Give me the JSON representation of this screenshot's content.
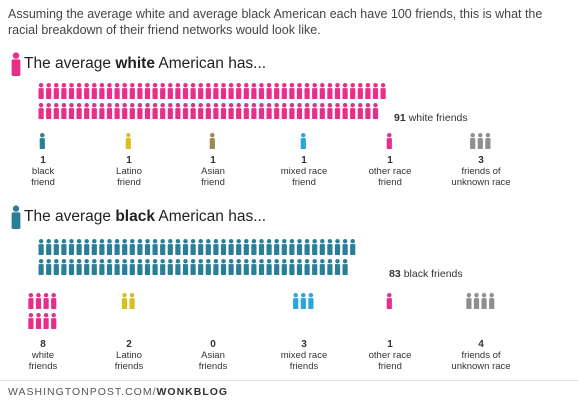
{
  "intro": {
    "line1": "Assuming the average white and average black American each have 100 friends, this is what the",
    "line2": "racial breakdown of their friend networks would look like."
  },
  "colors": {
    "white": "#e62e8b",
    "black": "#2a7f96",
    "latino": "#d9bf1c",
    "asian": "#9a8a52",
    "mixed": "#2aa6d9",
    "other": "#e62e8b",
    "unknown": "#8f8f92"
  },
  "sections": [
    {
      "id": "white",
      "heading_pre": "The average ",
      "heading_bold": "white",
      "heading_post": " American has...",
      "heading_icon_color": "#e62e8b",
      "total": {
        "count": "91",
        "label": "white friends",
        "color": "#e62e8b"
      },
      "categories": [
        {
          "key": "black",
          "count": "1",
          "label_lines": [
            "black",
            "friend"
          ],
          "color": "#2a7f96"
        },
        {
          "key": "latino",
          "count": "1",
          "label_lines": [
            "Latino",
            "friend"
          ],
          "color": "#d9bf1c"
        },
        {
          "key": "asian",
          "count": "1",
          "label_lines": [
            "Asian",
            "friend"
          ],
          "color": "#9a8a52"
        },
        {
          "key": "mixed",
          "count": "1",
          "label_lines": [
            "mixed race",
            "friend"
          ],
          "color": "#2aa6d9"
        },
        {
          "key": "other",
          "count": "1",
          "label_lines": [
            "other race",
            "friend"
          ],
          "color": "#e62e8b"
        },
        {
          "key": "unknown",
          "count": "3",
          "label_lines": [
            "friends of",
            "unknown race"
          ],
          "color": "#8f8f92"
        }
      ]
    },
    {
      "id": "black",
      "heading_pre": "The average ",
      "heading_bold": "black",
      "heading_post": " American has...",
      "heading_icon_color": "#2a7f96",
      "total": {
        "count": "83",
        "label": "black friends",
        "color": "#2a7f96"
      },
      "categories": [
        {
          "key": "white",
          "count": "8",
          "label_lines": [
            "white",
            "friends"
          ],
          "color": "#e62e8b"
        },
        {
          "key": "latino",
          "count": "2",
          "label_lines": [
            "Latino",
            "friends"
          ],
          "color": "#d9bf1c"
        },
        {
          "key": "asian",
          "count": "0",
          "label_lines": [
            "Asian",
            "friends"
          ],
          "color": "#9a8a52"
        },
        {
          "key": "mixed",
          "count": "3",
          "label_lines": [
            "mixed race",
            "friends"
          ],
          "color": "#2aa6d9"
        },
        {
          "key": "other",
          "count": "1",
          "label_lines": [
            "other race",
            "friend"
          ],
          "color": "#e62e8b"
        },
        {
          "key": "unknown",
          "count": "4",
          "label_lines": [
            "friends of",
            "unknown race"
          ],
          "color": "#8f8f92"
        }
      ]
    }
  ],
  "footer": {
    "prefix": "WASHINGTONPOST.COM/",
    "bold": "WONKBLOG"
  },
  "chart_data": {
    "type": "pictograph",
    "title": "Assuming the average white and average black American each have 100 friends, this is what the racial breakdown of their friend networks would look like.",
    "unit": "friends (out of 100)",
    "series": [
      {
        "name": "The average white American has...",
        "categories": [
          "white",
          "black",
          "Latino",
          "Asian",
          "mixed race",
          "other race",
          "unknown race"
        ],
        "values": [
          91,
          1,
          1,
          1,
          1,
          1,
          3
        ]
      },
      {
        "name": "The average black American has...",
        "categories": [
          "black",
          "white",
          "Latino",
          "Asian",
          "mixed race",
          "other race",
          "unknown race"
        ],
        "values": [
          83,
          8,
          2,
          0,
          3,
          1,
          4
        ]
      }
    ]
  }
}
